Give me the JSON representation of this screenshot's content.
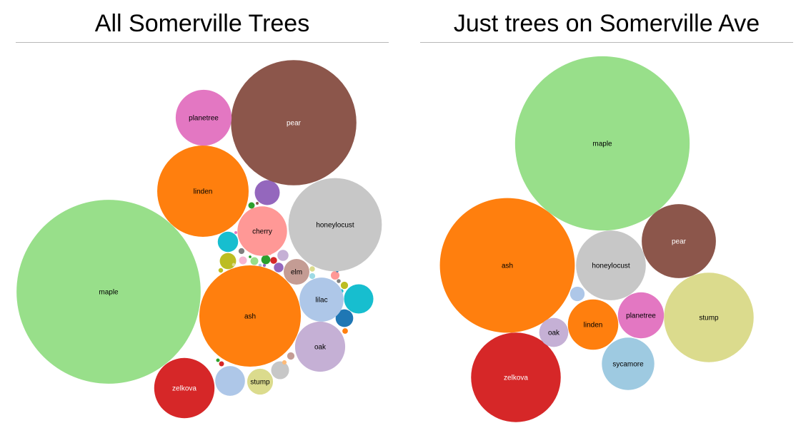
{
  "chart_data": [
    {
      "type": "bubble",
      "title": "All Somerville Trees",
      "colors": {
        "maple": "#98df8a",
        "pear": "#8c564b",
        "ash": "#ff7f0e",
        "honeylocust": "#c7c7c7",
        "linden": "#ff7f0e",
        "planetree": "#e377c2",
        "cherry": "#ff9896",
        "zelkova": "#d62728",
        "lilac": "#aec7e8",
        "oak": "#c5b0d5",
        "stump": "#dbdb8d",
        "elm": "#c49c94"
      },
      "labeled": [
        {
          "name": "maple",
          "value": 66100
        },
        {
          "name": "pear",
          "value": 30700
        },
        {
          "name": "ash",
          "value": 20100
        },
        {
          "name": "honeylocust",
          "value": 17000
        },
        {
          "name": "linden",
          "value": 16300
        },
        {
          "name": "planetree",
          "value": 6100
        },
        {
          "name": "cherry",
          "value": 4800
        },
        {
          "name": "zelkova",
          "value": 7100
        },
        {
          "name": "lilac",
          "value": 3800
        },
        {
          "name": "oak",
          "value": 4900
        },
        {
          "name": "stump",
          "value": 1300
        },
        {
          "name": "elm",
          "value": 1290
        }
      ],
      "unlabeled": [
        {
          "value": 1220,
          "color": "#9467bd"
        },
        {
          "value": 1680,
          "color": "#17becf"
        },
        {
          "value": 810,
          "color": "#17becf"
        },
        {
          "value": 1730,
          "color": "#aec7e8"
        },
        {
          "value": 625,
          "color": "#c7c7c7"
        },
        {
          "value": 605,
          "color": "#1f77b4"
        },
        {
          "value": 520,
          "color": "#bcbd22"
        },
        {
          "value": 240,
          "color": "#c5b0d5"
        },
        {
          "value": 180,
          "color": "#9467bd"
        },
        {
          "value": 160,
          "color": "#2ca02c"
        },
        {
          "value": 145,
          "color": "#ff9896"
        },
        {
          "value": 120,
          "color": "#f7b6d2"
        },
        {
          "value": 120,
          "color": "#98df8a"
        },
        {
          "value": 105,
          "color": "#c49c94"
        },
        {
          "value": 105,
          "color": "#bcbd22"
        },
        {
          "value": 90,
          "color": "#d62728"
        },
        {
          "value": 80,
          "color": "#2ca02c"
        },
        {
          "value": 68,
          "color": "#9edae5"
        },
        {
          "value": 68,
          "color": "#7f7f7f"
        },
        {
          "value": 60,
          "color": "#ff7f0e"
        },
        {
          "value": 55,
          "color": "#dbdb8d"
        },
        {
          "value": 48,
          "color": "#d62728"
        },
        {
          "value": 42,
          "color": "#bcbd22"
        },
        {
          "value": 38,
          "color": "#ffbb78"
        },
        {
          "value": 30,
          "color": "#7f7f7f"
        },
        {
          "value": 28,
          "color": "#17becf"
        },
        {
          "value": 25,
          "color": "#2ca02c"
        },
        {
          "value": 22,
          "color": "#dbdb8d"
        },
        {
          "value": 20,
          "color": "#aec7e8"
        },
        {
          "value": 18,
          "color": "#9467bd"
        },
        {
          "value": 16,
          "color": "#e377c2"
        },
        {
          "value": 15,
          "color": "#8c564b"
        },
        {
          "value": 14,
          "color": "#2ca02c"
        },
        {
          "value": 12,
          "color": "#1f77b4"
        },
        {
          "value": 10,
          "color": "#ff9896"
        }
      ]
    },
    {
      "type": "bubble",
      "title": "Just trees on Somerville Ave",
      "colors": {
        "maple": "#98df8a",
        "ash": "#ff7f0e",
        "zelkova": "#d62728",
        "honeylocust": "#c7c7c7",
        "pear": "#8c564b",
        "stump": "#dbdb8d",
        "sycamore": "#9ecae1",
        "planetree": "#e377c2",
        "linden": "#ff7f0e",
        "oak": "#c5b0d5"
      },
      "labeled": [
        {
          "name": "maple",
          "value": 144
        },
        {
          "name": "ash",
          "value": 86
        },
        {
          "name": "zelkova",
          "value": 38
        },
        {
          "name": "honeylocust",
          "value": 23
        },
        {
          "name": "pear",
          "value": 26
        },
        {
          "name": "stump",
          "value": 38
        },
        {
          "name": "sycamore",
          "value": 13
        },
        {
          "name": "planetree",
          "value": 10
        },
        {
          "name": "linden",
          "value": 12
        },
        {
          "name": "oak",
          "value": 4
        }
      ],
      "unlabeled": [
        {
          "value": 1,
          "color": "#aec7e8"
        }
      ]
    }
  ]
}
